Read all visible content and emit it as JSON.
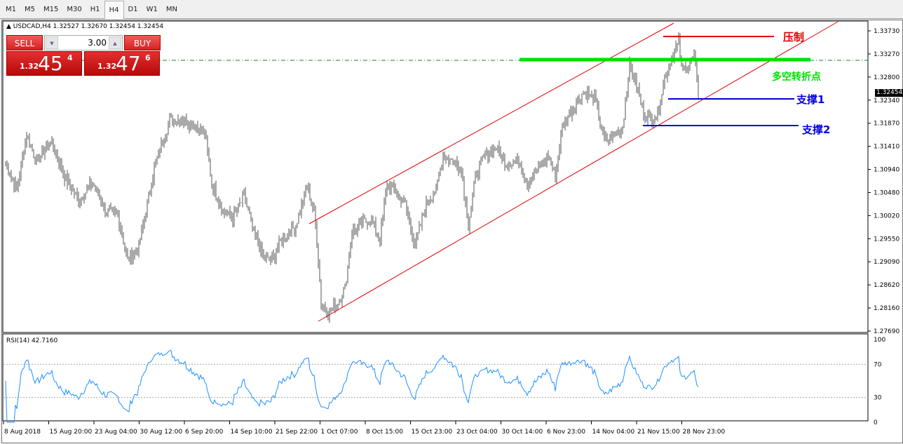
{
  "timeframes": [
    "M1",
    "M5",
    "M15",
    "M30",
    "H1",
    "H4",
    "D1",
    "W1",
    "MN"
  ],
  "active_timeframe": "H4",
  "header": {
    "symbol_line": "USDCAD,H4  1.32527 1.32670 1.32454 1.32454"
  },
  "trade_panel": {
    "sell_label": "SELL",
    "buy_label": "BUY",
    "lot": "3.00",
    "sell_price": {
      "small": "1.32",
      "big": "45",
      "pip": "4"
    },
    "buy_price": {
      "small": "1.32",
      "big": "47",
      "pip": "6"
    }
  },
  "annotations": {
    "resistance": "压制",
    "pivot": "多空转折点",
    "support1": "支撑1",
    "support2": "支撑2"
  },
  "colors": {
    "resistance": "#e00000",
    "pivot": "#00e000",
    "support": "#0000dd",
    "channel": "#e00000",
    "rsi": "#1e90ff"
  },
  "chart_data": {
    "type": "candlestick",
    "price_axis": [
      "1.33730",
      "1.33270",
      "1.32800",
      "1.32340",
      "1.31870",
      "1.31410",
      "1.30940",
      "1.30480",
      "1.30020",
      "1.29550",
      "1.29090",
      "1.28620",
      "1.28160",
      "1.27690"
    ],
    "last_price": "1.32454",
    "time_axis": [
      "8 Aug 2018",
      "15 Aug 20:00",
      "23 Aug 04:00",
      "30 Aug 12:00",
      "6 Sep 20:00",
      "14 Sep 10:00",
      "21 Sep 22:00",
      "1 Oct 07:00",
      "8 Oct 15:00",
      "15 Oct 23:00",
      "23 Oct 04:00",
      "30 Oct 14:00",
      "6 Nov 23:00",
      "14 Nov 04:00",
      "21 Nov 15:00",
      "28 Nov 23:00"
    ],
    "close_path": [
      [
        0,
        1.3109
      ],
      [
        8,
        1.3053
      ],
      [
        15,
        1.3166
      ],
      [
        22,
        1.3109
      ],
      [
        32,
        1.3152
      ],
      [
        42,
        1.3081
      ],
      [
        52,
        1.3032
      ],
      [
        62,
        1.3067
      ],
      [
        72,
        1.301
      ],
      [
        80,
        1.3
      ],
      [
        87,
        1.2912
      ],
      [
        95,
        1.294
      ],
      [
        102,
        1.3039
      ],
      [
        107,
        1.3109
      ],
      [
        117,
        1.3194
      ],
      [
        127,
        1.3194
      ],
      [
        137,
        1.318
      ],
      [
        142,
        1.3166
      ],
      [
        147,
        1.3067
      ],
      [
        155,
        1.301
      ],
      [
        162,
        1.2996
      ],
      [
        170,
        1.3039
      ],
      [
        177,
        1.2968
      ],
      [
        185,
        1.2912
      ],
      [
        190,
        1.2912
      ],
      [
        197,
        1.2954
      ],
      [
        207,
        1.2982
      ],
      [
        215,
        1.306
      ],
      [
        220,
        1.301
      ],
      [
        222,
        1.2954
      ],
      [
        225,
        1.2827
      ],
      [
        230,
        1.2806
      ],
      [
        237,
        1.2827
      ],
      [
        242,
        1.2855
      ],
      [
        247,
        1.2968
      ],
      [
        252,
        1.2982
      ],
      [
        260,
        1.2996
      ],
      [
        267,
        1.2954
      ],
      [
        272,
        1.3067
      ],
      [
        277,
        1.3053
      ],
      [
        285,
        1.3024
      ],
      [
        292,
        1.294
      ],
      [
        300,
        1.3024
      ],
      [
        307,
        1.3053
      ],
      [
        312,
        1.3123
      ],
      [
        320,
        1.3109
      ],
      [
        325,
        1.3095
      ],
      [
        330,
        1.2982
      ],
      [
        335,
        1.3081
      ],
      [
        342,
        1.3123
      ],
      [
        350,
        1.3137
      ],
      [
        357,
        1.3109
      ],
      [
        367,
        1.3109
      ],
      [
        372,
        1.3067
      ],
      [
        380,
        1.3095
      ],
      [
        387,
        1.3123
      ],
      [
        392,
        1.3081
      ],
      [
        397,
        1.318
      ],
      [
        405,
        1.3222
      ],
      [
        412,
        1.325
      ],
      [
        420,
        1.3236
      ],
      [
        427,
        1.3152
      ],
      [
        435,
        1.3166
      ],
      [
        440,
        1.318
      ],
      [
        445,
        1.3307
      ],
      [
        450,
        1.3264
      ],
      [
        455,
        1.3208
      ],
      [
        460,
        1.3194
      ],
      [
        465,
        1.3208
      ],
      [
        470,
        1.3278
      ],
      [
        475,
        1.3321
      ],
      [
        480,
        1.3349
      ],
      [
        482,
        1.3293
      ],
      [
        487,
        1.3307
      ],
      [
        491,
        1.3321
      ],
      [
        494,
        1.3245
      ]
    ],
    "rsi": {
      "label": "RSI(14) 42.7160",
      "levels": [
        "100",
        "70",
        "30",
        "0"
      ],
      "last": 42.716
    }
  }
}
